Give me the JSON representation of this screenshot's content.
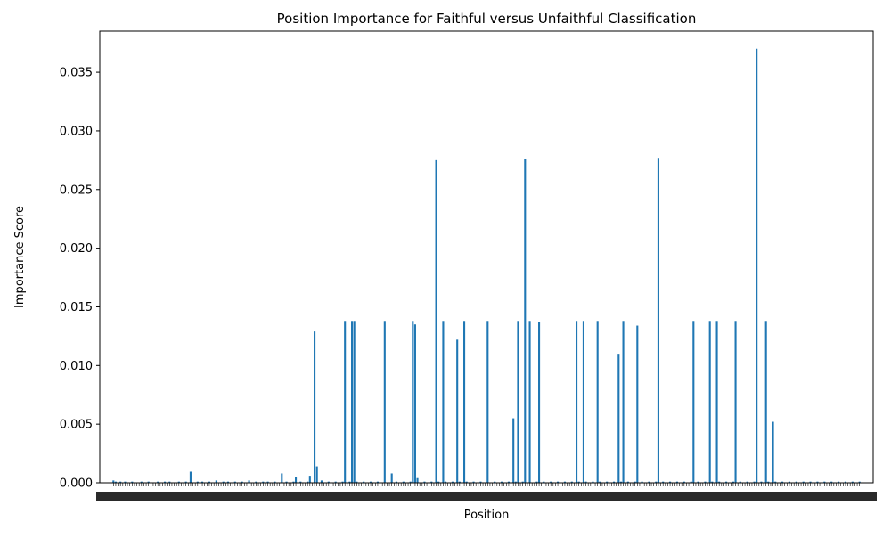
{
  "chart_data": {
    "type": "bar",
    "title": "Position Importance for Faithful versus Unfaithful Classification",
    "xlabel": "Position",
    "ylabel": "Importance Score",
    "ylim": [
      0,
      0.0385
    ],
    "yticks": [
      "0.000",
      "0.005",
      "0.010",
      "0.015",
      "0.020",
      "0.025",
      "0.030",
      "0.035"
    ],
    "x_tick_labels_note": "",
    "bar_color": "#1f77b4",
    "grid": false,
    "legend": "none",
    "n_positions": 320,
    "series": [
      {
        "values": {
          "0": 0.0002,
          "1": 0.0001,
          "3": 0.0001,
          "5": 0.0001,
          "8": 0.0001,
          "12": 0.0001,
          "15": 0.0001,
          "19": 0.0001,
          "22": 0.0001,
          "24": 0.0001,
          "28": 0.0001,
          "31": 0.0001,
          "33": 0.00095,
          "36": 0.0001,
          "38": 0.0001,
          "41": 0.0001,
          "44": 0.0002,
          "47": 0.0001,
          "49": 0.0001,
          "52": 0.0001,
          "55": 0.0001,
          "58": 0.0002,
          "61": 0.0001,
          "64": 0.0001,
          "66": 0.0001,
          "69": 0.0001,
          "72": 0.0008,
          "74": 0.0001,
          "77": 0.0001,
          "80": 0.0001,
          "83": 0.0001,
          "86": 0.0129,
          "89": 0.0002,
          "92": 0.0001,
          "95": 0.0001,
          "98": 0.0001,
          "101": 0.0001,
          "104": 0.0001,
          "107": 0.0001,
          "110": 0.0001,
          "113": 0.0001,
          "116": 0.0138,
          "119": 0.0008,
          "121": 0.0001,
          "124": 0.0001,
          "127": 0.0001,
          "130": 0.0004,
          "133": 0.0001,
          "136": 0.0001,
          "139": 0.0001,
          "142": 0.0001,
          "145": 0.0001,
          "148": 0.0001,
          "151": 0.0001,
          "154": 0.0001,
          "157": 0.0001,
          "160": 0.0138,
          "163": 0.0001,
          "166": 0.0001,
          "169": 0.0001,
          "172": 0.0001,
          "175": 0.0001,
          "178": 0.0138,
          "181": 0.0001,
          "184": 0.0001,
          "187": 0.0001,
          "190": 0.0001,
          "193": 0.0001,
          "196": 0.0001,
          "199": 0.0001,
          "202": 0.0001,
          "205": 0.0001,
          "208": 0.0001,
          "211": 0.0001,
          "214": 0.0001,
          "217": 0.0001,
          "220": 0.0001,
          "223": 0.0001,
          "226": 0.0001,
          "229": 0.0001,
          "232": 0.0001,
          "235": 0.0001,
          "238": 0.0001,
          "241": 0.0001,
          "244": 0.0001,
          "247": 0.0001,
          "250": 0.0001,
          "253": 0.0001,
          "256": 0.0001,
          "259": 0.0001,
          "262": 0.0001,
          "265": 0.0001,
          "268": 0.0001,
          "271": 0.0001,
          "274": 0.0001,
          "277": 0.0001,
          "280": 0.0001,
          "283": 0.0001,
          "286": 0.0001,
          "289": 0.0001,
          "292": 0.0001,
          "295": 0.0001,
          "298": 0.0001,
          "301": 0.0001,
          "304": 0.0001,
          "307": 0.0001,
          "310": 0.0001,
          "313": 0.0001,
          "316": 0.0001,
          "319": 0.0001,
          "78": 0.0005,
          "84": 0.0006,
          "87": 0.0014,
          "99": 0.0138,
          "102": 0.0138,
          "103": 0.0138,
          "128": 0.0138,
          "129": 0.0135,
          "138": 0.0275,
          "141": 0.0138,
          "147": 0.0122,
          "150": 0.0138,
          "171": 0.0055,
          "173": 0.0138,
          "176": 0.0276,
          "182": 0.0137,
          "198": 0.0138,
          "201": 0.0138,
          "207": 0.0138,
          "216": 0.011,
          "218": 0.0138,
          "224": 0.0134,
          "233": 0.0277,
          "248": 0.0138,
          "255": 0.0138,
          "258": 0.0138,
          "266": 0.0138,
          "275": 0.037,
          "279": 0.0138,
          "282": 0.0052
        }
      }
    ]
  }
}
